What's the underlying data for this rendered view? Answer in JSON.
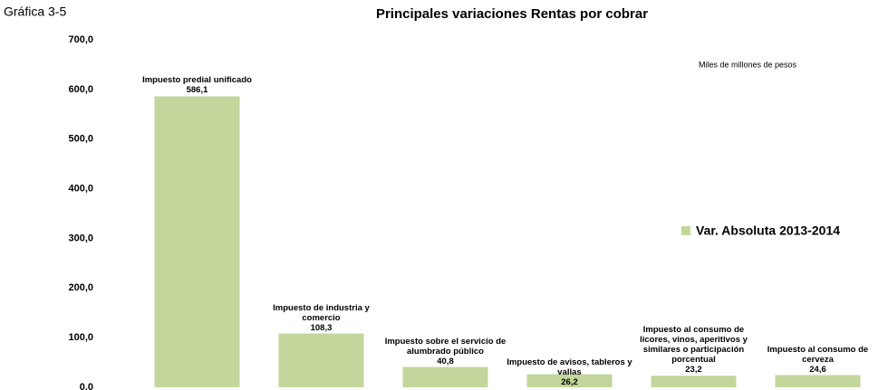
{
  "chart_data": {
    "type": "bar",
    "caption": "Gráfica 3-5",
    "title": "Principales variaciones Rentas por cobrar",
    "note": "Miles de millones de pesos",
    "categories": [
      "Impuesto predial unificado",
      "Impuesto de industria y comercio",
      "Impuesto sobre el servicio de alumbrado público",
      "Impuesto de avisos, tableros y vallas",
      "Impuesto al consumo de licores, vinos, aperitivos y similares o participación porcentual",
      "Impuesto al consumo de cerveza"
    ],
    "series": [
      {
        "name": "Var. Absoluta 2013-2014",
        "color": "#c3d69b",
        "values": [
          586.1,
          108.3,
          40.8,
          26.2,
          23.2,
          24.6
        ],
        "value_labels": [
          "586,1",
          "108,3",
          "40,8",
          "26,2",
          "23,2",
          "24,6"
        ]
      }
    ],
    "ylim": [
      0,
      700
    ],
    "yticks": [
      {
        "value": 0,
        "label": "0,0"
      },
      {
        "value": 100,
        "label": "100,0"
      },
      {
        "value": 200,
        "label": "200,0"
      },
      {
        "value": 300,
        "label": "300,0"
      },
      {
        "value": 400,
        "label": "400,0"
      },
      {
        "value": 500,
        "label": "500,0"
      },
      {
        "value": 600,
        "label": "600,0"
      },
      {
        "value": 700,
        "label": "700,0"
      }
    ],
    "grid": false,
    "legend": "right"
  }
}
